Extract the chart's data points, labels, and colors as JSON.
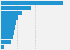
{
  "values": [
    19985,
    9626,
    7000,
    5600,
    5000,
    4600,
    4200,
    3800,
    3400,
    1100
  ],
  "bar_color": "#2196d3",
  "background_color": "#f2f2f2",
  "bar_bg_color": "#f2f2f2",
  "grid_color": "#cccccc",
  "figsize": [
    1.0,
    0.71
  ],
  "dpi": 100
}
